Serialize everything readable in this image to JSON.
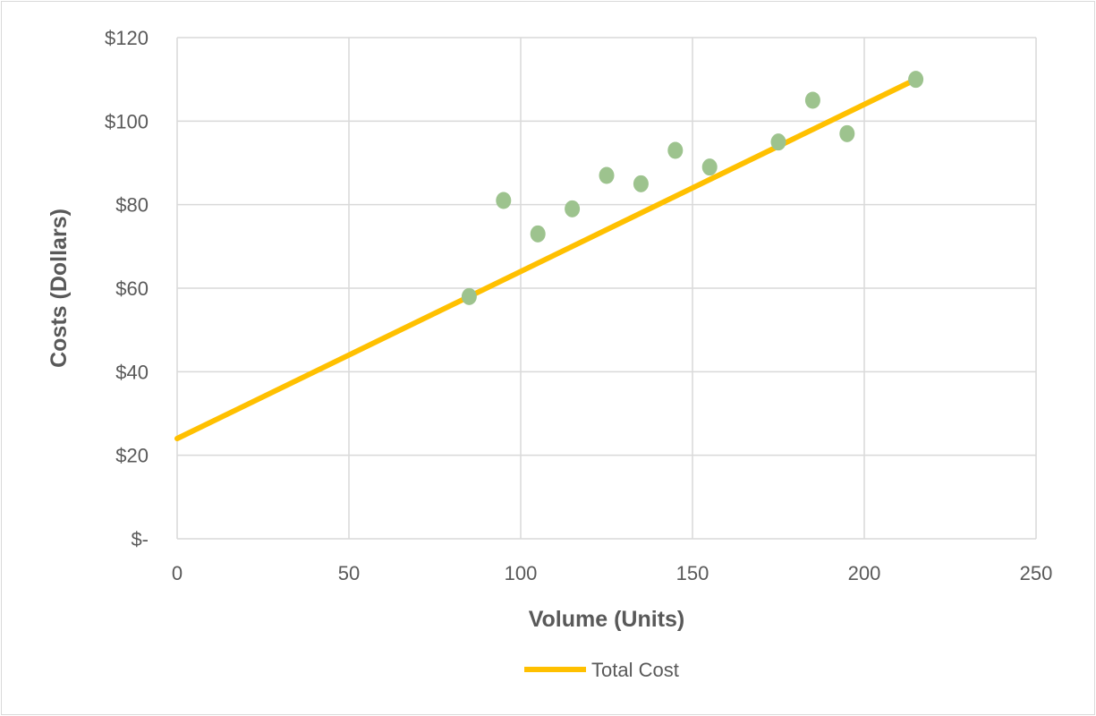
{
  "chart_data": {
    "type": "scatter",
    "title": "",
    "xlabel": "Volume (Units)",
    "ylabel": "Costs (Dollars)",
    "xlim": [
      0,
      250
    ],
    "ylim": [
      0,
      120
    ],
    "x_ticks": [
      "0",
      "50",
      "100",
      "150",
      "200",
      "250"
    ],
    "y_ticks": [
      "$-",
      "$20",
      "$40",
      "$60",
      "$80",
      "$100",
      "$120"
    ],
    "grid": true,
    "legend_position": "bottom",
    "points": {
      "color": "#9dc38e",
      "x": [
        85,
        95,
        105,
        115,
        125,
        135,
        145,
        155,
        175,
        185,
        195,
        215
      ],
      "y": [
        58,
        81,
        73,
        79,
        87,
        85,
        93,
        89,
        95,
        105,
        97,
        110
      ]
    },
    "series": [
      {
        "name": "Total Cost",
        "type": "line",
        "color": "#ffc000",
        "x": [
          0,
          215
        ],
        "y": [
          24,
          110
        ]
      }
    ]
  }
}
